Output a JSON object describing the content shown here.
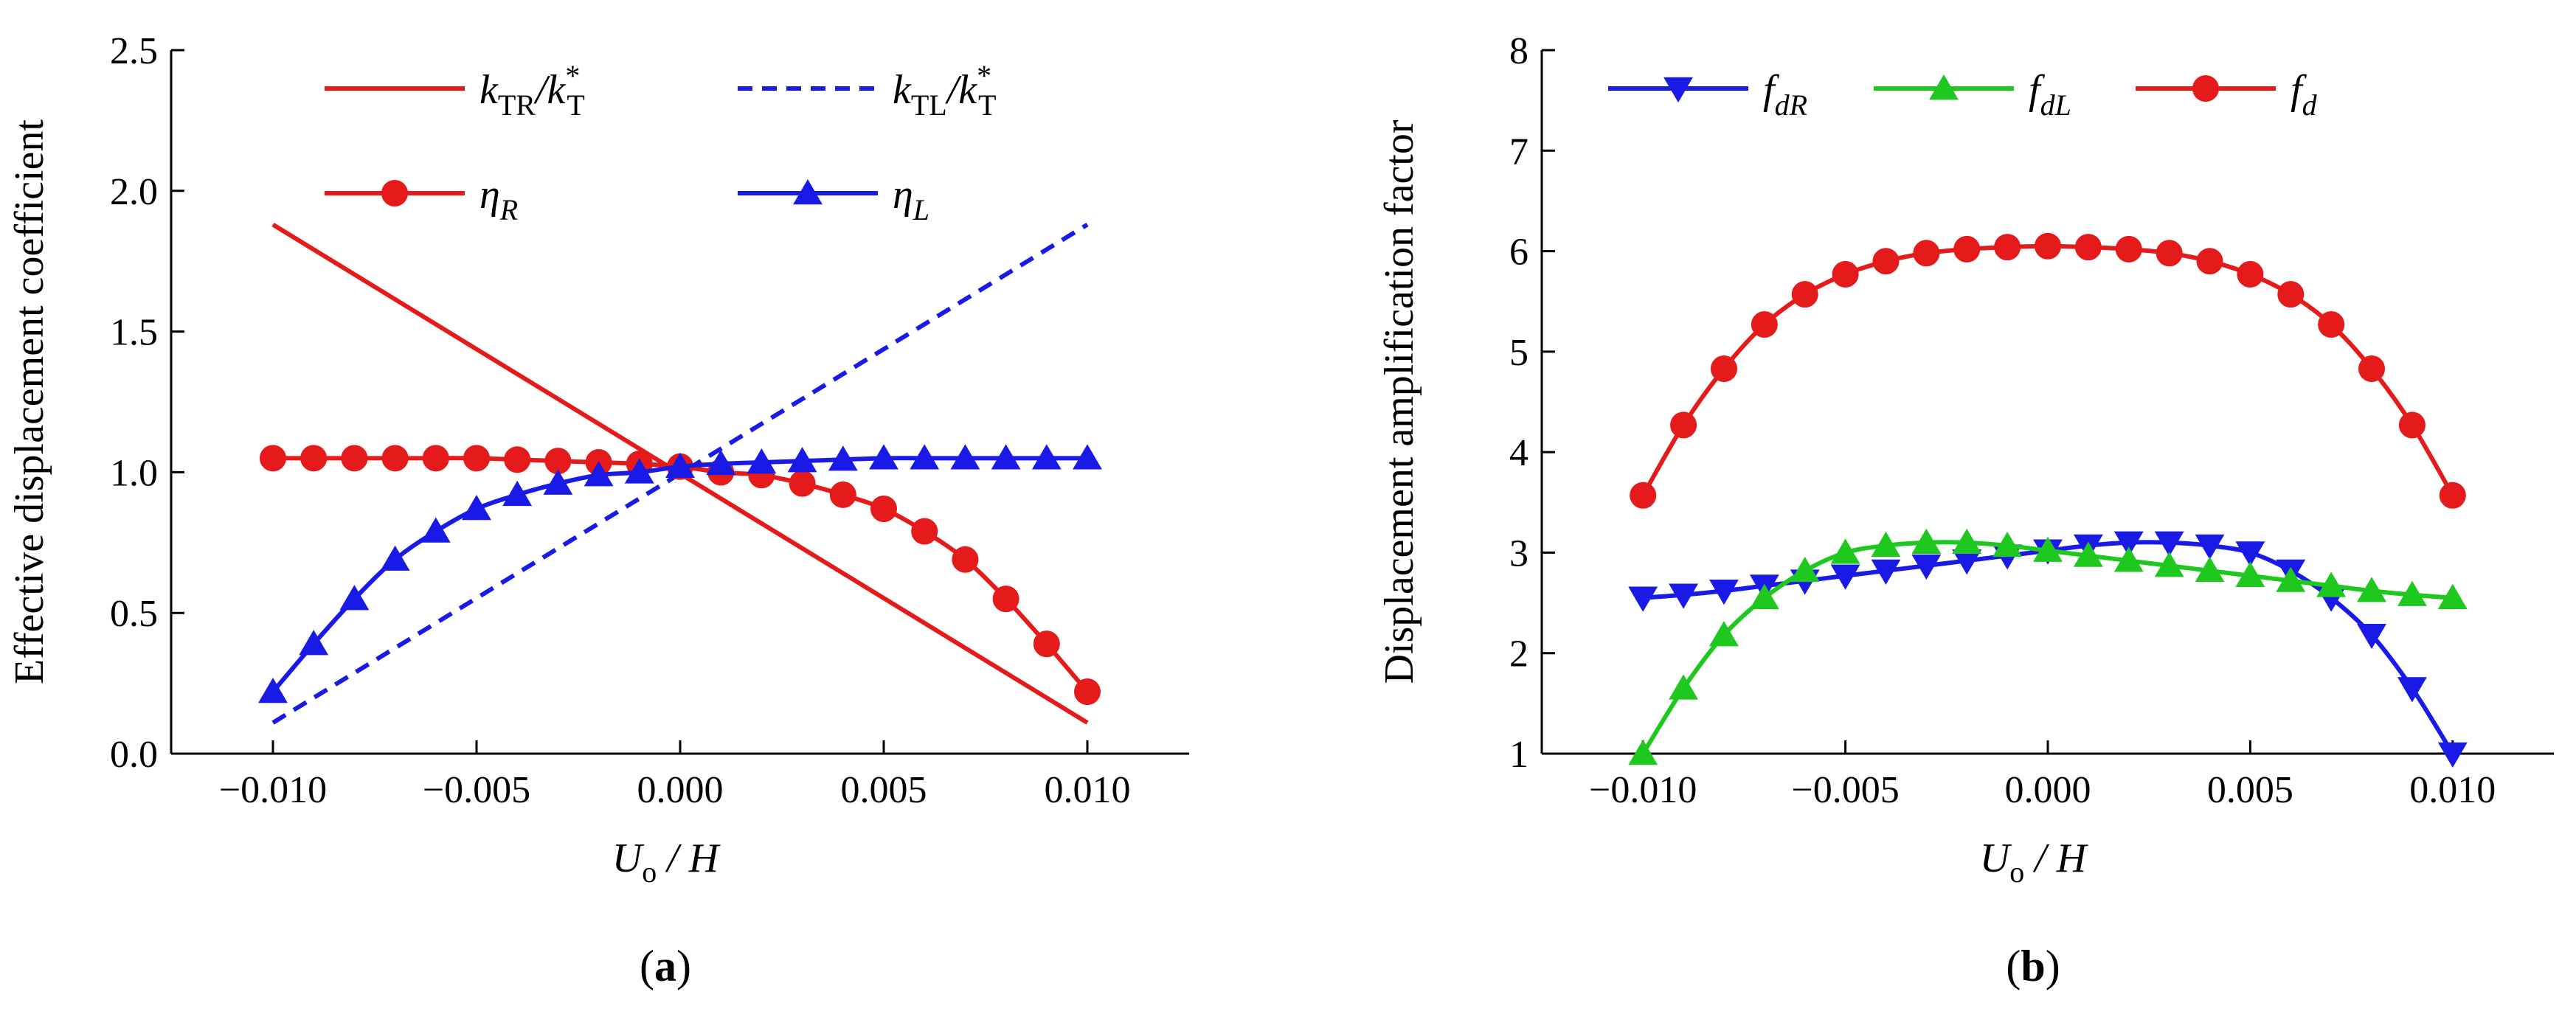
{
  "colors": {
    "red": "#e51a1a",
    "blue": "#1a1ae6",
    "green": "#1ec81e",
    "axis": "#000000"
  },
  "chart_data": [
    {
      "type": "line",
      "panel_label": "(a)",
      "panel_label_parts": {
        "open": "(",
        "letter": "a",
        "close": ")"
      },
      "ylabel": "Effective displacement  coefficient",
      "xlabel": "Uo / H",
      "xlabel_parts": {
        "main": "U",
        "sub": "o",
        "rest": " / H"
      },
      "xlim": [
        -0.0125,
        0.0125
      ],
      "ylim": [
        0.0,
        2.5
      ],
      "xticks": [
        -0.01,
        -0.005,
        0.0,
        0.005,
        0.01
      ],
      "xtick_labels": [
        "−0.010",
        "−0.005",
        "0.000",
        "0.005",
        "0.010"
      ],
      "yticks": [
        0.0,
        0.5,
        1.0,
        1.5,
        2.0,
        2.5
      ],
      "ytick_labels": [
        "0.0",
        "0.5",
        "1.0",
        "1.5",
        "2.0",
        "2.5"
      ],
      "series": [
        {
          "name": "kTR/k*T",
          "label_parts": {
            "v1": "k",
            "s1": "TR",
            "mid": "/k",
            "sup": "*",
            "s2": "T"
          },
          "color": "red",
          "dash": "solid",
          "marker": "none",
          "x": [
            -0.01,
            0.01
          ],
          "y": [
            1.88,
            0.11
          ]
        },
        {
          "name": "kTL/k*T",
          "label_parts": {
            "v1": "k",
            "s1": "TL",
            "mid": "/k",
            "sup": "*",
            "s2": "T"
          },
          "color": "blue",
          "dash": "dashed",
          "marker": "none",
          "x": [
            -0.01,
            0.01
          ],
          "y": [
            0.11,
            1.88
          ]
        },
        {
          "name": "ηR",
          "label_parts": {
            "v1": "η",
            "s1": "R"
          },
          "color": "red",
          "dash": "solid",
          "marker": "circle",
          "x": [
            -0.01,
            -0.009,
            -0.008,
            -0.007,
            -0.006,
            -0.005,
            -0.004,
            -0.003,
            -0.002,
            -0.001,
            0.0,
            0.001,
            0.002,
            0.003,
            0.004,
            0.005,
            0.006,
            0.007,
            0.008,
            0.009,
            0.01
          ],
          "y": [
            1.05,
            1.05,
            1.05,
            1.05,
            1.05,
            1.05,
            1.045,
            1.04,
            1.035,
            1.03,
            1.02,
            1.0,
            0.99,
            0.96,
            0.92,
            0.87,
            0.79,
            0.69,
            0.55,
            0.39,
            0.22
          ]
        },
        {
          "name": "ηL",
          "label_parts": {
            "v1": "η",
            "s1": "L"
          },
          "color": "blue",
          "dash": "solid",
          "marker": "triangle-up",
          "x": [
            -0.01,
            -0.009,
            -0.008,
            -0.007,
            -0.006,
            -0.005,
            -0.004,
            -0.003,
            -0.002,
            -0.001,
            0.0,
            0.001,
            0.002,
            0.003,
            0.004,
            0.005,
            0.006,
            0.007,
            0.008,
            0.009,
            0.01
          ],
          "y": [
            0.22,
            0.39,
            0.55,
            0.69,
            0.79,
            0.87,
            0.92,
            0.96,
            0.99,
            1.0,
            1.02,
            1.03,
            1.035,
            1.04,
            1.045,
            1.05,
            1.05,
            1.05,
            1.05,
            1.05,
            1.05
          ]
        }
      ],
      "legend": "top, 2 columns"
    },
    {
      "type": "line",
      "panel_label": "(b)",
      "panel_label_parts": {
        "open": "(",
        "letter": "b",
        "close": ")"
      },
      "ylabel": "Displacement amplification factor",
      "xlabel": "Uo / H",
      "xlabel_parts": {
        "main": "U",
        "sub": "o",
        "rest": " / H"
      },
      "xlim": [
        -0.0125,
        0.0125
      ],
      "ylim": [
        1,
        8
      ],
      "xticks": [
        -0.01,
        -0.005,
        0.0,
        0.005,
        0.01
      ],
      "xtick_labels": [
        "−0.010",
        "−0.005",
        "0.000",
        "0.005",
        "0.010"
      ],
      "yticks": [
        1,
        2,
        3,
        4,
        5,
        6,
        7,
        8
      ],
      "ytick_labels": [
        "1",
        "2",
        "3",
        "4",
        "5",
        "6",
        "7",
        "8"
      ],
      "series": [
        {
          "name": "fdR",
          "label_parts": {
            "v1": "f",
            "s1": "dR"
          },
          "color": "blue",
          "dash": "solid",
          "marker": "triangle-down",
          "x": [
            -0.01,
            -0.009,
            -0.008,
            -0.007,
            -0.006,
            -0.005,
            -0.004,
            -0.003,
            -0.002,
            -0.001,
            0.0,
            0.001,
            0.002,
            0.003,
            0.004,
            0.005,
            0.006,
            0.007,
            0.008,
            0.009,
            0.01
          ],
          "y": [
            2.55,
            2.58,
            2.62,
            2.67,
            2.72,
            2.77,
            2.82,
            2.87,
            2.92,
            2.97,
            3.02,
            3.07,
            3.1,
            3.1,
            3.07,
            3.0,
            2.82,
            2.55,
            2.18,
            1.65,
            1.0
          ]
        },
        {
          "name": "fdL",
          "label_parts": {
            "v1": "f",
            "s1": "dL"
          },
          "color": "green",
          "dash": "solid",
          "marker": "triangle-up",
          "x": [
            -0.01,
            -0.009,
            -0.008,
            -0.007,
            -0.006,
            -0.005,
            -0.004,
            -0.003,
            -0.002,
            -0.001,
            0.0,
            0.001,
            0.002,
            0.003,
            0.004,
            0.005,
            0.006,
            0.007,
            0.008,
            0.009,
            0.01
          ],
          "y": [
            1.0,
            1.65,
            2.18,
            2.55,
            2.82,
            3.0,
            3.07,
            3.1,
            3.1,
            3.07,
            3.02,
            2.97,
            2.92,
            2.87,
            2.82,
            2.77,
            2.72,
            2.67,
            2.62,
            2.58,
            2.55
          ]
        },
        {
          "name": "fd",
          "label_parts": {
            "v1": "f",
            "s1": "d"
          },
          "color": "red",
          "dash": "solid",
          "marker": "circle",
          "x": [
            -0.01,
            -0.009,
            -0.008,
            -0.007,
            -0.006,
            -0.005,
            -0.004,
            -0.003,
            -0.002,
            -0.001,
            0.0,
            0.001,
            0.002,
            0.003,
            0.004,
            0.005,
            0.006,
            0.007,
            0.008,
            0.009,
            0.01
          ],
          "y": [
            3.57,
            4.27,
            4.83,
            5.27,
            5.57,
            5.77,
            5.9,
            5.98,
            6.02,
            6.04,
            6.05,
            6.04,
            6.02,
            5.98,
            5.9,
            5.77,
            5.57,
            5.27,
            4.83,
            4.27,
            3.57
          ]
        }
      ],
      "legend": "top, 1 row"
    }
  ]
}
